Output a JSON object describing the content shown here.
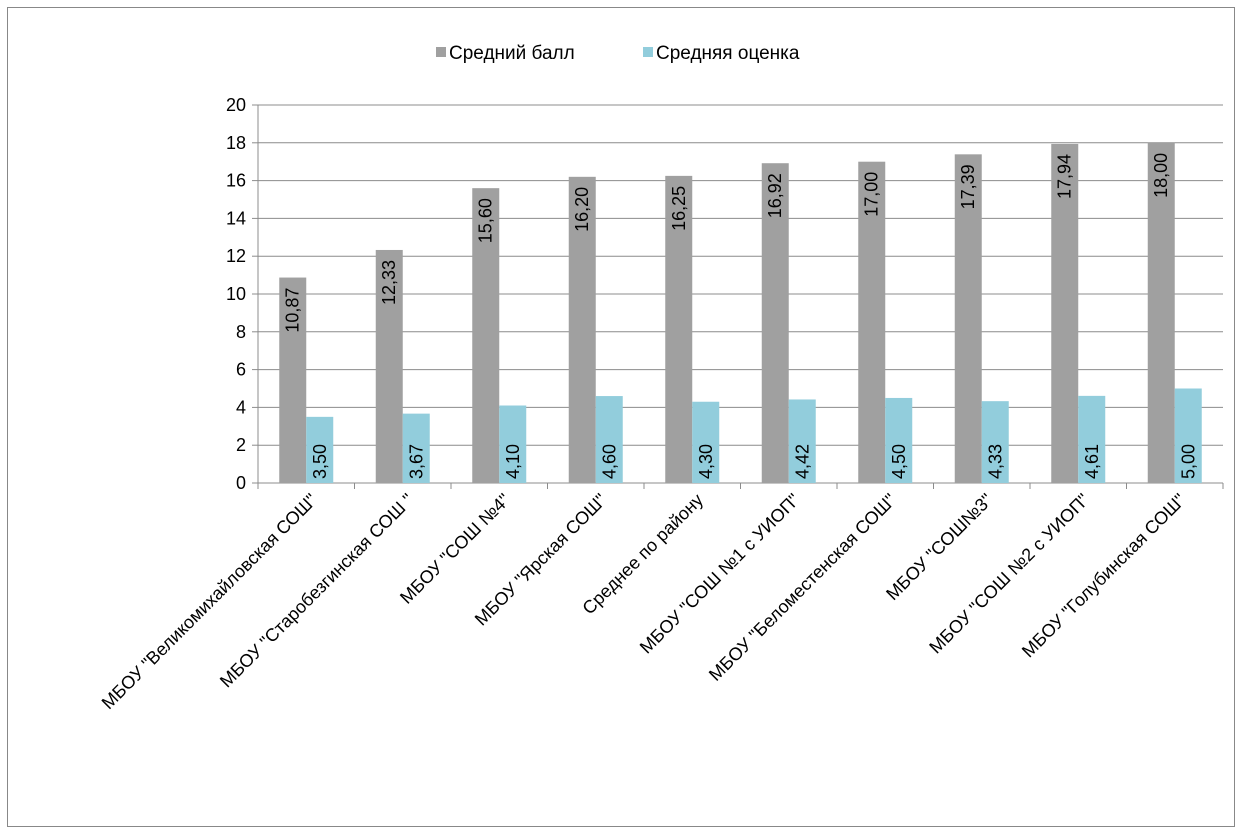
{
  "chart_data": {
    "type": "bar",
    "title": "",
    "xlabel": "",
    "ylabel": "",
    "ylim": [
      0,
      20
    ],
    "yticks": [
      "0",
      "2",
      "4",
      "6",
      "8",
      "10",
      "12",
      "14",
      "16",
      "18",
      "20"
    ],
    "grid": true,
    "legend_position": "top",
    "categories": [
      "МБОУ \"Великомихайловская СОШ\"",
      "МБОУ \"Старобезгинская СОШ \"",
      "МБОУ \"СОШ №4\"",
      "МБОУ \"Ярская СОШ\"",
      "Среднее по району",
      "МБОУ \"СОШ №1 с УИОП\"",
      "МБОУ \"Беломестенская СОШ\"",
      "МБОУ \"СОШ№3\"",
      "МБОУ \"СОШ №2 с УИОП\"",
      "МБОУ \"Голубинская СОШ\""
    ],
    "series": [
      {
        "name": "Средний балл",
        "color": "#a0a0a0",
        "values": [
          10.87,
          12.33,
          15.6,
          16.2,
          16.25,
          16.92,
          17.0,
          17.39,
          17.94,
          18.0
        ],
        "labels": [
          "10,87",
          "12,33",
          "15,60",
          "16,20",
          "16,25",
          "16,92",
          "17,00",
          "17,39",
          "17,94",
          "18,00"
        ]
      },
      {
        "name": "Средняя оценка",
        "color": "#92cddc",
        "values": [
          3.5,
          3.67,
          4.1,
          4.6,
          4.3,
          4.42,
          4.5,
          4.33,
          4.61,
          5.0
        ],
        "labels": [
          "3,50",
          "3,67",
          "4,10",
          "4,60",
          "4,30",
          "4,42",
          "4,50",
          "4,33",
          "4,61",
          "5,00"
        ]
      }
    ]
  }
}
